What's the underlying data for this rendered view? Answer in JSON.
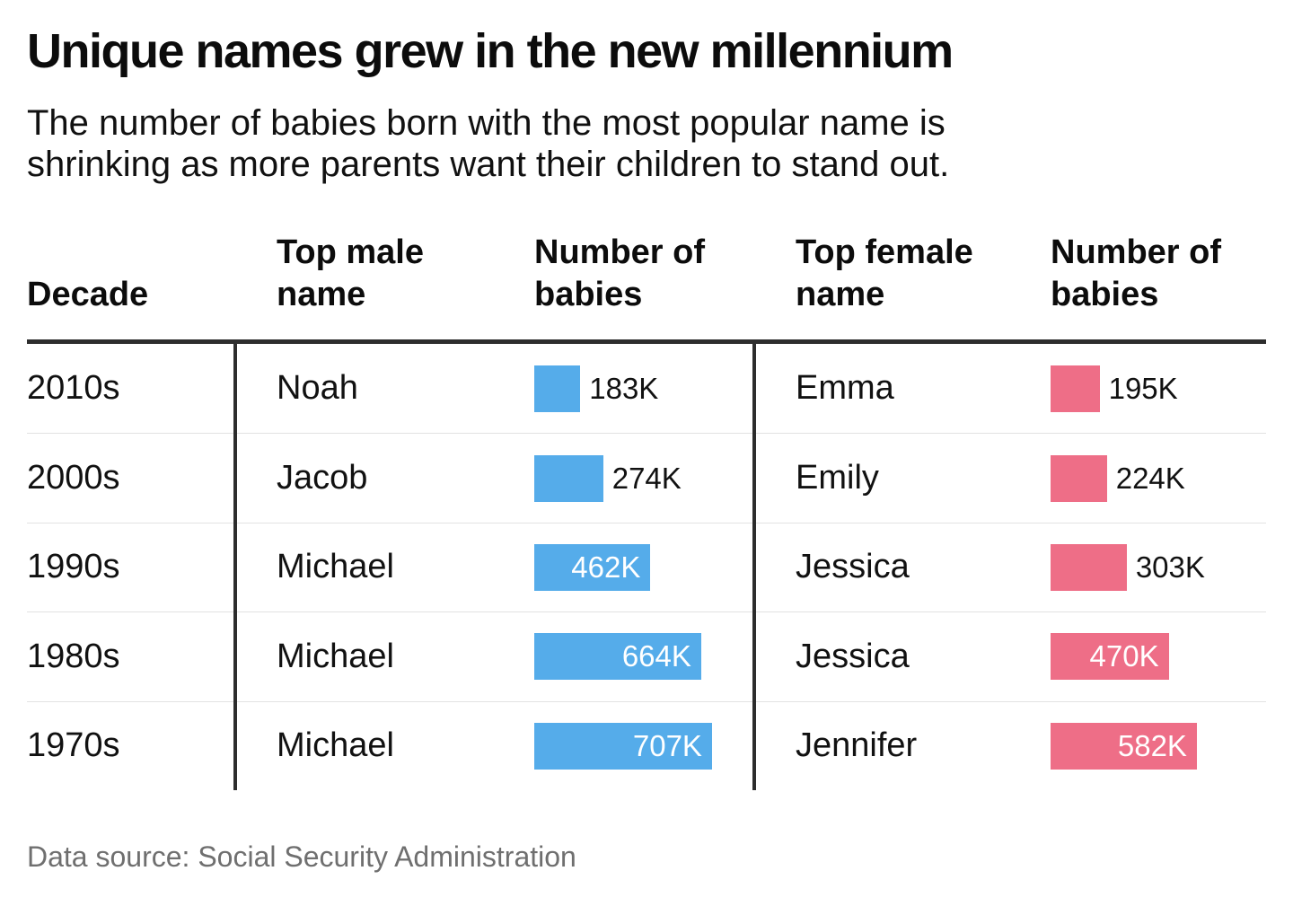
{
  "header": {
    "title": "Unique names grew in the new millennium",
    "subtitle_lines": [
      "The number of babies born with the most popular name is",
      "shrinking as more parents want their children to stand out."
    ]
  },
  "colors": {
    "male_bar": "#55ACEA",
    "female_bar": "#EE6E87",
    "rule": "#2d2d2d",
    "row_separator": "#e2e2e2",
    "footer_text": "#6f6f6f"
  },
  "table": {
    "columns": [
      {
        "label": "Decade"
      },
      {
        "label": "Top male name"
      },
      {
        "label": "Number of babies"
      },
      {
        "label": "Top female name"
      },
      {
        "label": "Number of babies"
      }
    ],
    "rows": [
      {
        "decade": "2010s",
        "male": {
          "name": "Noah",
          "value": 183,
          "label": "183K",
          "label_position": "outside"
        },
        "female": {
          "name": "Emma",
          "value": 195,
          "label": "195K",
          "label_position": "outside"
        }
      },
      {
        "decade": "2000s",
        "male": {
          "name": "Jacob",
          "value": 274,
          "label": "274K",
          "label_position": "outside"
        },
        "female": {
          "name": "Emily",
          "value": 224,
          "label": "224K",
          "label_position": "outside"
        }
      },
      {
        "decade": "1990s",
        "male": {
          "name": "Michael",
          "value": 462,
          "label": "462K",
          "label_position": "inside"
        },
        "female": {
          "name": "Jessica",
          "value": 303,
          "label": "303K",
          "label_position": "outside"
        }
      },
      {
        "decade": "1980s",
        "male": {
          "name": "Michael",
          "value": 664,
          "label": "664K",
          "label_position": "inside"
        },
        "female": {
          "name": "Jessica",
          "value": 470,
          "label": "470K",
          "label_position": "inside"
        }
      },
      {
        "decade": "1970s",
        "male": {
          "name": "Michael",
          "value": 707,
          "label": "707K",
          "label_position": "inside"
        },
        "female": {
          "name": "Jennifer",
          "value": 582,
          "label": "582K",
          "label_position": "inside"
        }
      }
    ]
  },
  "footer": {
    "source": "Data source: Social Security Administration"
  },
  "chart_data": {
    "type": "bar",
    "orientation": "horizontal",
    "title": "Unique names grew in the new millennium",
    "subtitle": "The number of babies born with the most popular name is shrinking as more parents want their children to stand out.",
    "categories": [
      "2010s",
      "2000s",
      "1990s",
      "1980s",
      "1970s"
    ],
    "series": [
      {
        "name": "Top male name — Number of babies",
        "labels": [
          "Noah",
          "Jacob",
          "Michael",
          "Michael",
          "Michael"
        ],
        "values": [
          183000,
          274000,
          462000,
          664000,
          707000
        ],
        "value_labels": [
          "183K",
          "274K",
          "462K",
          "664K",
          "707K"
        ],
        "color": "#55ACEA"
      },
      {
        "name": "Top female name — Number of babies",
        "labels": [
          "Emma",
          "Emily",
          "Jessica",
          "Jessica",
          "Jennifer"
        ],
        "values": [
          195000,
          224000,
          303000,
          470000,
          582000
        ],
        "value_labels": [
          "195K",
          "224K",
          "303K",
          "470K",
          "582K"
        ],
        "color": "#EE6E87"
      }
    ],
    "xlabel": "",
    "ylabel": "Decade",
    "xlim": [
      0,
      750000
    ],
    "grid": false,
    "legend_position": "none",
    "source": "Data source: Social Security Administration"
  }
}
